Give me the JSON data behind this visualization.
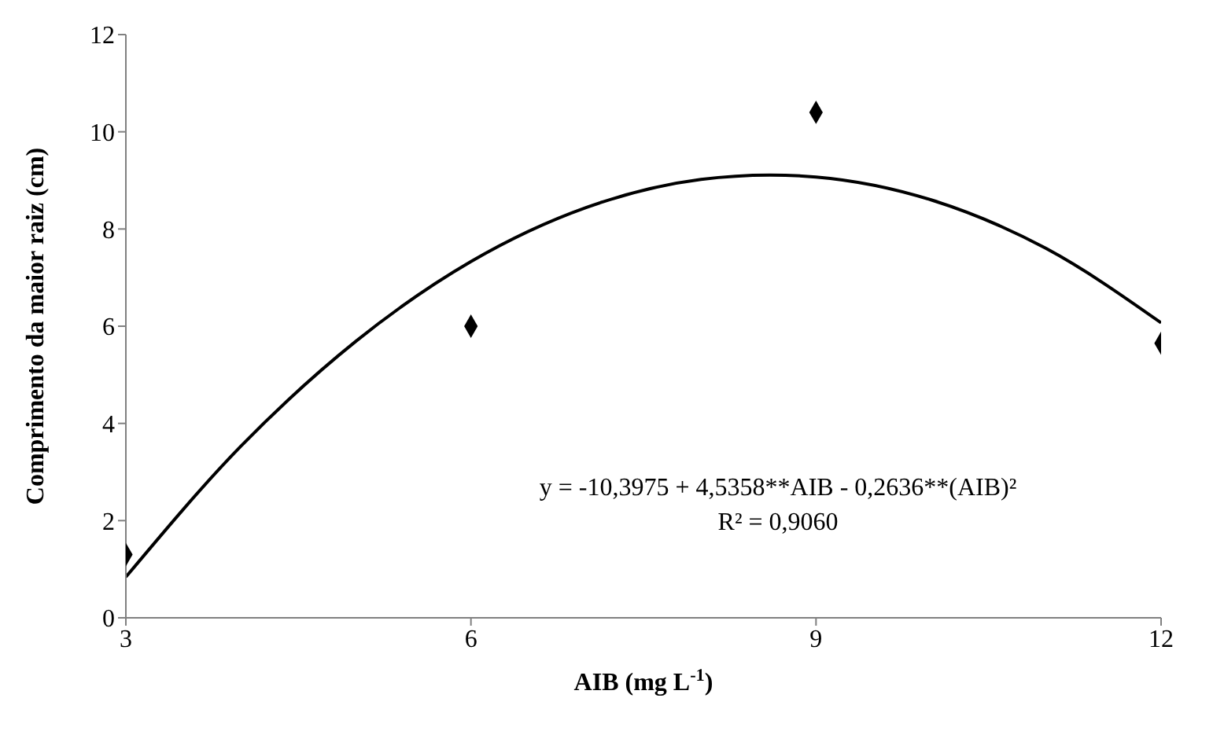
{
  "chart_data": {
    "type": "scatter",
    "xlabel": "AIB (mg L$^{-1}$)",
    "ylabel": "Comprimento da maior raiz (cm)",
    "xlim": [
      3,
      12
    ],
    "xticks": [
      3,
      6,
      9,
      12
    ],
    "ylim": [
      0,
      12
    ],
    "yticks": [
      0,
      2,
      4,
      6,
      8,
      10,
      12
    ],
    "series": [
      {
        "marker": "diamond",
        "color": "#000000",
        "x": [
          3,
          6,
          9,
          12
        ],
        "values": [
          1.3,
          6.0,
          10.4,
          5.65
        ]
      },
      {
        "type": "line",
        "color": "#000000",
        "x": [
          3,
          4,
          5,
          6,
          7,
          8,
          8.6,
          9,
          10,
          11,
          12
        ],
        "values": [
          0.84,
          3.53,
          5.69,
          7.33,
          8.44,
          9.02,
          9.11,
          9.07,
          8.6,
          7.6,
          6.07
        ]
      }
    ],
    "annotations": [
      "y = -10,3975 + 4,5358**AIB - 0,2636**(AIB)²",
      "R² = 0,9060"
    ]
  }
}
